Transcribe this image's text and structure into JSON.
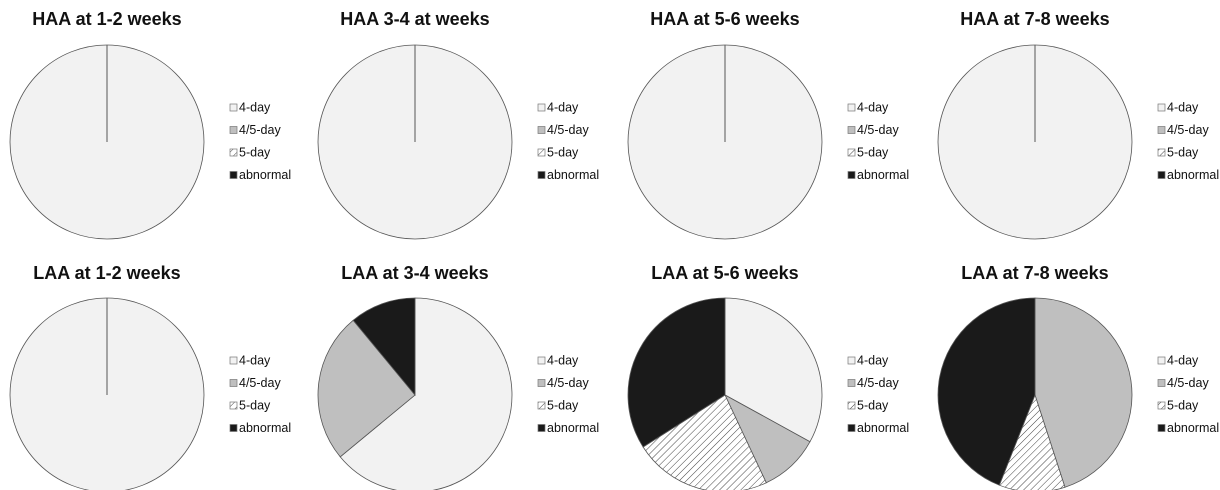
{
  "chart_data": [
    {
      "type": "pie",
      "title": "HAA at 1-2 weeks",
      "categories": [
        "4-day",
        "4/5-day",
        "5-day",
        "abnormal"
      ],
      "values": [
        100,
        0,
        0,
        0
      ],
      "colors": [
        "#f2f2f2",
        "#bfbfbf",
        "#ffffff",
        "#1a1a1a"
      ],
      "patterns": [
        "solid",
        "solid",
        "diagonal",
        "solid"
      ]
    },
    {
      "type": "pie",
      "title": "HAA 3-4 at weeks",
      "categories": [
        "4-day",
        "4/5-day",
        "5-day",
        "abnormal"
      ],
      "values": [
        100,
        0,
        0,
        0
      ],
      "colors": [
        "#f2f2f2",
        "#bfbfbf",
        "#ffffff",
        "#1a1a1a"
      ],
      "patterns": [
        "solid",
        "solid",
        "diagonal",
        "solid"
      ]
    },
    {
      "type": "pie",
      "title": "HAA at 5-6 weeks",
      "categories": [
        "4-day",
        "4/5-day",
        "5-day",
        "abnormal"
      ],
      "values": [
        100,
        0,
        0,
        0
      ],
      "colors": [
        "#f2f2f2",
        "#bfbfbf",
        "#ffffff",
        "#1a1a1a"
      ],
      "patterns": [
        "solid",
        "solid",
        "diagonal",
        "solid"
      ]
    },
    {
      "type": "pie",
      "title": "HAA at 7-8 weeks",
      "categories": [
        "4-day",
        "4/5-day",
        "5-day",
        "abnormal"
      ],
      "values": [
        100,
        0,
        0,
        0
      ],
      "colors": [
        "#f2f2f2",
        "#bfbfbf",
        "#ffffff",
        "#1a1a1a"
      ],
      "patterns": [
        "solid",
        "solid",
        "diagonal",
        "solid"
      ]
    },
    {
      "type": "pie",
      "title": "LAA at 1-2 weeks",
      "categories": [
        "4-day",
        "4/5-day",
        "5-day",
        "abnormal"
      ],
      "values": [
        100,
        0,
        0,
        0
      ],
      "colors": [
        "#f2f2f2",
        "#bfbfbf",
        "#ffffff",
        "#1a1a1a"
      ],
      "patterns": [
        "solid",
        "solid",
        "diagonal",
        "solid"
      ]
    },
    {
      "type": "pie",
      "title": "LAA at 3-4 weeks",
      "categories": [
        "4-day",
        "4/5-day",
        "5-day",
        "abnormal"
      ],
      "values": [
        64,
        25,
        0,
        11
      ],
      "colors": [
        "#f2f2f2",
        "#bfbfbf",
        "#ffffff",
        "#1a1a1a"
      ],
      "patterns": [
        "solid",
        "solid",
        "diagonal",
        "solid"
      ]
    },
    {
      "type": "pie",
      "title": "LAA at 5-6 weeks",
      "categories": [
        "4-day",
        "4/5-day",
        "5-day",
        "abnormal"
      ],
      "values": [
        33,
        10,
        23,
        34
      ],
      "colors": [
        "#f2f2f2",
        "#bfbfbf",
        "#ffffff",
        "#1a1a1a"
      ],
      "patterns": [
        "solid",
        "solid",
        "diagonal",
        "solid"
      ]
    },
    {
      "type": "pie",
      "title": "LAA at 7-8 weeks",
      "categories": [
        "4-day",
        "4/5-day",
        "5-day",
        "abnormal"
      ],
      "values": [
        0,
        45,
        11,
        44
      ],
      "colors": [
        "#f2f2f2",
        "#bfbfbf",
        "#ffffff",
        "#1a1a1a"
      ],
      "patterns": [
        "solid",
        "solid",
        "diagonal",
        "solid"
      ]
    }
  ]
}
